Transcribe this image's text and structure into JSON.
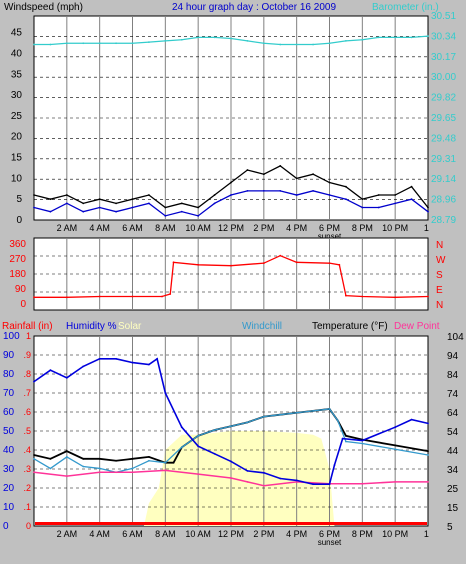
{
  "colors": {
    "background": "#c0c0c0",
    "plot_bg": "#ffffff",
    "grid": "#808080",
    "wind_gust": "#000000",
    "wind_avg": "#0000cc",
    "wind_gray": "#808080",
    "barometer": "#33cccc",
    "wind_dir": "#ff0000",
    "humidity": "#0000dd",
    "solar_fill": "#ffffc0",
    "windchill": "#3399cc",
    "temperature": "#000000",
    "dew_point": "#ff3399",
    "rainfall": "#ff0000"
  },
  "chart_data": [
    {
      "type": "line",
      "title": "24 hour graph day : October 16 2009",
      "left_axis_label": "Windspeed (mph)",
      "right_axis_label": "Barometer (in.)",
      "left_ticks": [
        "0",
        "5",
        "10",
        "15",
        "20",
        "25",
        "30",
        "35",
        "40",
        "45"
      ],
      "right_ticks": [
        "28.79",
        "28.96",
        "29.14",
        "29.31",
        "29.48",
        "29.65",
        "29.82",
        "30.00",
        "30.17",
        "30.34",
        "30.51"
      ],
      "ylim_left": [
        0,
        49
      ],
      "ylim_right": [
        28.79,
        30.51
      ],
      "x_ticks": [
        "2 AM",
        "4 AM",
        "6 AM",
        "8 AM",
        "10 AM",
        "12 PM",
        "2 PM",
        "4 PM",
        "6 PM",
        "8 PM",
        "10 PM",
        "1"
      ],
      "x_note": "sunset",
      "series": [
        {
          "name": "Wind gust",
          "x": [
            0,
            1,
            2,
            3,
            4,
            5,
            6,
            7,
            8,
            9,
            10,
            11,
            12,
            13,
            14,
            15,
            16,
            17,
            18,
            19,
            20,
            21,
            22,
            23,
            24
          ],
          "values": [
            6,
            5,
            6,
            4,
            5,
            4,
            5,
            6,
            3,
            4,
            3,
            6,
            9,
            12,
            11,
            13,
            10,
            11,
            9,
            8,
            5,
            6,
            6,
            8,
            3
          ]
        },
        {
          "name": "Wind average",
          "x": [
            0,
            1,
            2,
            3,
            4,
            5,
            6,
            7,
            8,
            9,
            10,
            11,
            12,
            13,
            14,
            15,
            16,
            17,
            18,
            19,
            20,
            21,
            22,
            23,
            24
          ],
          "values": [
            3,
            2,
            4,
            2,
            3,
            2,
            3,
            4,
            1,
            2,
            1,
            4,
            6,
            7,
            7,
            7,
            6,
            7,
            6,
            5,
            3,
            3,
            4,
            5,
            2
          ]
        },
        {
          "name": "Barometer",
          "x": [
            0,
            1,
            2,
            3,
            4,
            5,
            6,
            7,
            8,
            9,
            10,
            11,
            12,
            13,
            14,
            15,
            16,
            17,
            18,
            19,
            20,
            21,
            22,
            23,
            24
          ],
          "values": [
            30.27,
            30.27,
            30.28,
            30.28,
            30.28,
            30.28,
            30.28,
            30.29,
            30.3,
            30.31,
            30.33,
            30.33,
            30.32,
            30.3,
            30.28,
            30.27,
            30.27,
            30.27,
            30.28,
            30.3,
            30.31,
            30.33,
            30.33,
            30.33,
            30.34
          ]
        }
      ]
    },
    {
      "type": "line",
      "left_ticks": [
        "0",
        "90",
        "180",
        "270",
        "360"
      ],
      "right_ticks": [
        "N",
        "E",
        "S",
        "W",
        "N"
      ],
      "ylim": [
        0,
        360
      ],
      "series": [
        {
          "name": "Wind direction",
          "x": [
            0,
            2,
            4,
            6,
            7.8,
            8.3,
            8.5,
            10,
            12,
            14,
            15,
            16,
            18,
            18.6,
            19,
            20,
            22,
            24
          ],
          "values": [
            40,
            40,
            45,
            45,
            45,
            60,
            250,
            235,
            230,
            245,
            290,
            250,
            245,
            235,
            50,
            45,
            40,
            45
          ]
        }
      ]
    },
    {
      "type": "line",
      "legend": [
        "Rainfall (in)",
        "Humidity %",
        "Solar",
        "Windchill",
        "Temperature (°F)",
        "Dew Point"
      ],
      "humidity_ticks": [
        "0",
        "10",
        "20",
        "30",
        "40",
        "50",
        "60",
        "70",
        "80",
        "90",
        "100"
      ],
      "rain_ticks": [
        "0",
        ".1",
        ".2",
        ".3",
        ".4",
        ".5",
        ".6",
        ".7",
        ".8",
        ".9",
        "1"
      ],
      "temp_ticks": [
        "5",
        "15",
        "25",
        "34",
        "44",
        "54",
        "64",
        "74",
        "84",
        "94",
        "104"
      ],
      "ylim_humidity": [
        0,
        100
      ],
      "series": [
        {
          "name": "Humidity %",
          "x": [
            0,
            1,
            2,
            3,
            4,
            5,
            6,
            7,
            7.5,
            8,
            9,
            10,
            11,
            12,
            13,
            14,
            15,
            16,
            17,
            18,
            18.3,
            18.8,
            20,
            22,
            23,
            24
          ],
          "values": [
            76,
            82,
            78,
            84,
            88,
            88,
            86,
            85,
            88,
            70,
            52,
            42,
            38,
            34,
            29,
            28,
            25,
            24,
            22,
            22,
            32,
            46,
            45,
            52,
            56,
            54
          ]
        },
        {
          "name": "Temperature (°F)",
          "x": [
            0,
            1,
            2,
            3,
            4,
            5,
            6,
            7,
            8,
            8.5,
            9,
            10,
            11,
            12,
            13,
            14,
            15,
            16,
            17,
            18,
            18.5,
            19,
            20,
            22,
            24
          ],
          "values": [
            42,
            40,
            44,
            40,
            40,
            39,
            40,
            41,
            38,
            38,
            46,
            52,
            55,
            57,
            59,
            62,
            63,
            64,
            65,
            66,
            60,
            52,
            50,
            47,
            44
          ]
        },
        {
          "name": "Windchill",
          "x": [
            0,
            1,
            2,
            3,
            4,
            5,
            6,
            7,
            8,
            9,
            10,
            11,
            12,
            13,
            14,
            15,
            16,
            17,
            18,
            18.5,
            19,
            20,
            22,
            24
          ],
          "values": [
            40,
            35,
            41,
            36,
            35,
            33,
            35,
            39,
            38,
            46,
            52,
            55,
            57,
            59,
            62,
            63,
            64,
            65,
            66,
            60,
            49,
            48,
            45,
            42
          ]
        },
        {
          "name": "Dew Point",
          "x": [
            0,
            2,
            4,
            6,
            8,
            10,
            12,
            13,
            14,
            16,
            18,
            20,
            22,
            24
          ],
          "values": [
            33,
            31,
            33,
            33,
            34,
            32,
            30,
            28,
            26,
            28,
            27,
            27,
            28,
            28
          ]
        },
        {
          "name": "Solar",
          "x": [
            6.7,
            7,
            7.6,
            8,
            9,
            10,
            12,
            14,
            16,
            17,
            17.5,
            18,
            18.3
          ],
          "values": [
            0,
            12,
            20,
            40,
            48,
            48,
            50,
            50,
            49,
            48,
            46,
            30,
            0
          ]
        },
        {
          "name": "Rainfall (in)",
          "x": [
            0,
            24
          ],
          "values": [
            0,
            0
          ]
        }
      ]
    }
  ]
}
